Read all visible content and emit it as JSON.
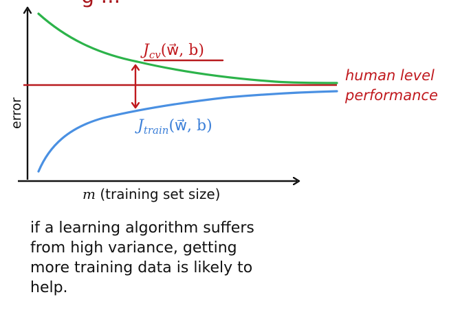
{
  "header": {
    "title_fragment": "g ..."
  },
  "diagram": {
    "y_axis_label": "error",
    "x_axis_label_var": "m",
    "x_axis_label_text": " (training set size)",
    "cv_label": {
      "main": "J",
      "sub": "cv",
      "args": "(w⃗, b)",
      "color": "#c0191e"
    },
    "train_label": {
      "main": "J",
      "sub": "train",
      "args": "(w⃗, b)",
      "color": "#3b7fd8"
    },
    "human_label_lines": [
      "human level",
      "performance"
    ],
    "colors": {
      "cv_curve": "#2cb34a",
      "train_curve": "#4a90e2",
      "human_line": "#b81a1e",
      "axis": "#111111",
      "gap_arrow": "#c0191e",
      "annotation_red": "#c0191e"
    }
  },
  "caption_lines": [
    "if a learning algorithm suffers",
    "from high variance, getting",
    "more training data is likely to",
    "help."
  ]
}
